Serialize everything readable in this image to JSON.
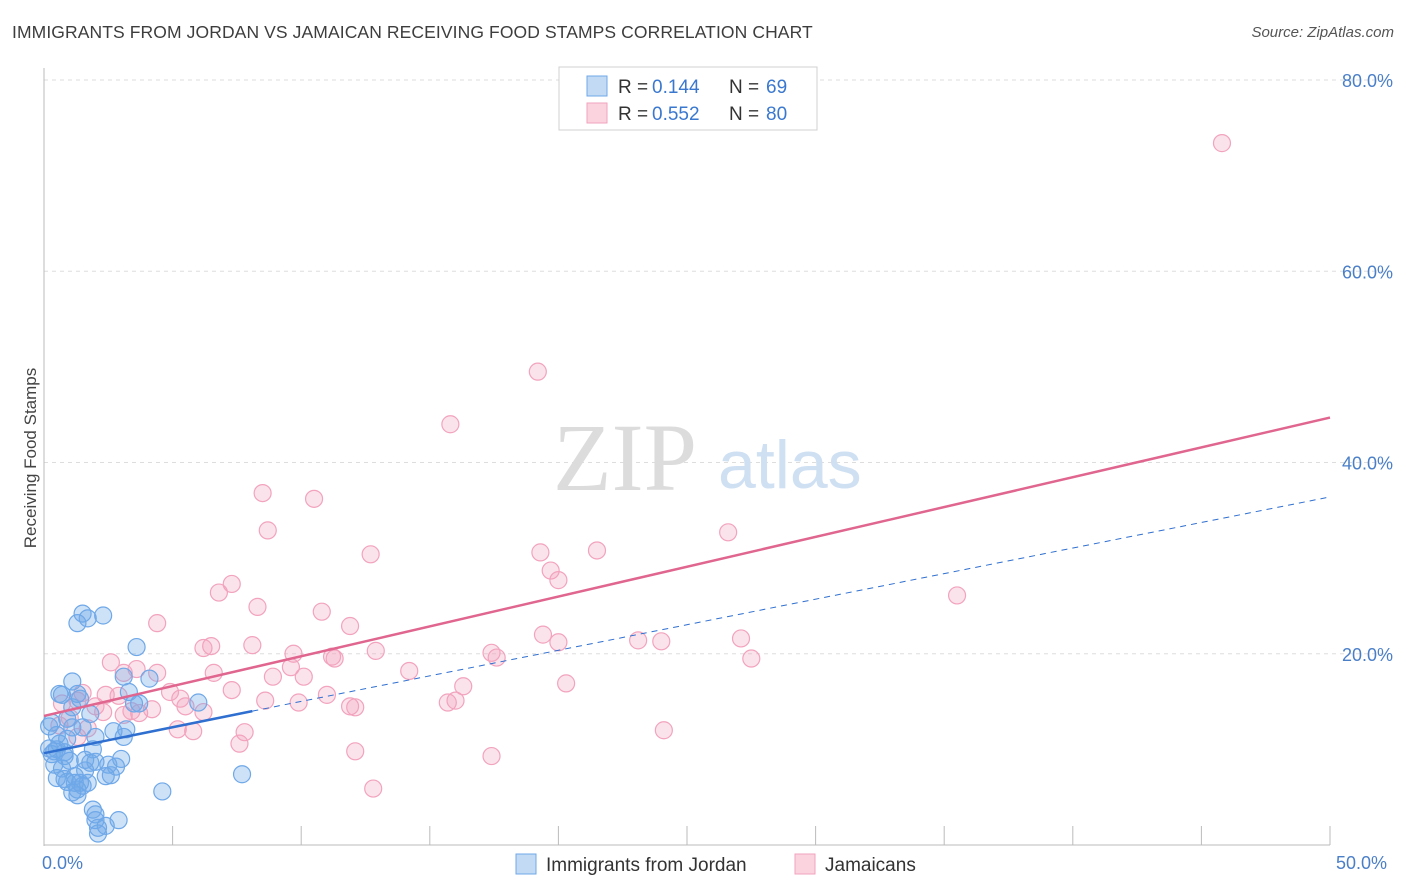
{
  "title": "IMMIGRANTS FROM JORDAN VS JAMAICAN RECEIVING FOOD STAMPS CORRELATION CHART",
  "source": "Source: ZipAtlas.com",
  "watermark": {
    "zip": "ZIP",
    "atlas": "atlas"
  },
  "colors": {
    "blue": "#6fa8e8",
    "blue_line": "#2f6fd0",
    "pink": "#f2a3bd",
    "pink_line": "#e0658f",
    "grid": "#dddddd",
    "axis_text": "#4a7fc8"
  },
  "legend": {
    "rows": [
      {
        "r_label": "R =",
        "r_value": "0.144",
        "n_label": "N =",
        "n_value": "69"
      },
      {
        "r_label": "R =",
        "r_value": "0.552",
        "n_label": "N =",
        "n_value": "80"
      }
    ]
  },
  "bottom_legend": {
    "items": [
      {
        "label": "Immigrants from Jordan"
      },
      {
        "label": "Jamaicans"
      }
    ]
  },
  "chart_data": {
    "type": "scatter",
    "title": "IMMIGRANTS FROM JORDAN VS JAMAICAN RECEIVING FOOD STAMPS CORRELATION CHART",
    "xlabel": "",
    "ylabel": "Receiving Food Stamps",
    "xlim": [
      0,
      50
    ],
    "ylim": [
      0,
      80
    ],
    "x_ticks": [
      "0.0%",
      "50.0%"
    ],
    "y_ticks": [
      {
        "value": 20,
        "label": "20.0%"
      },
      {
        "value": 40,
        "label": "40.0%"
      },
      {
        "value": 60,
        "label": "60.0%"
      },
      {
        "value": 80,
        "label": "80.0%"
      }
    ],
    "grid": true,
    "legend_position": "top-center",
    "series": [
      {
        "name": "Immigrants from Jordan",
        "color": "blue",
        "R": 0.144,
        "N": 69,
        "trend_solid": {
          "x": [
            0,
            8.1
          ],
          "y": [
            9.6,
            14.0
          ]
        },
        "trend_dashed": {
          "x": [
            8.1,
            50
          ],
          "y": [
            14.0,
            36.4
          ]
        },
        "points": [
          [
            1.5,
            24.2
          ],
          [
            1.7,
            23.7
          ],
          [
            2.3,
            24.0
          ],
          [
            1.3,
            23.2
          ],
          [
            3.6,
            20.7
          ],
          [
            4.1,
            17.4
          ],
          [
            3.1,
            17.6
          ],
          [
            1.1,
            17.1
          ],
          [
            0.6,
            15.8
          ],
          [
            0.7,
            15.7
          ],
          [
            1.3,
            15.8
          ],
          [
            1.4,
            15.3
          ],
          [
            3.5,
            14.8
          ],
          [
            3.7,
            14.8
          ],
          [
            6.0,
            14.9
          ],
          [
            1.1,
            14.4
          ],
          [
            0.2,
            12.4
          ],
          [
            1.1,
            12.3
          ],
          [
            1.5,
            12.3
          ],
          [
            3.2,
            12.1
          ],
          [
            3.1,
            11.3
          ],
          [
            2.0,
            11.3
          ],
          [
            0.5,
            11.5
          ],
          [
            0.9,
            11.1
          ],
          [
            0.2,
            10.1
          ],
          [
            0.5,
            10.0
          ],
          [
            0.8,
            9.7
          ],
          [
            1.9,
            10.0
          ],
          [
            0.3,
            9.5
          ],
          [
            0.8,
            9.3
          ],
          [
            1.6,
            8.9
          ],
          [
            2.0,
            8.7
          ],
          [
            1.8,
            8.6
          ],
          [
            2.5,
            8.4
          ],
          [
            3.0,
            9.0
          ],
          [
            0.4,
            8.4
          ],
          [
            0.7,
            8.0
          ],
          [
            2.8,
            8.2
          ],
          [
            2.6,
            7.3
          ],
          [
            7.7,
            7.4
          ],
          [
            2.4,
            7.2
          ],
          [
            0.5,
            7.0
          ],
          [
            0.8,
            6.9
          ],
          [
            1.2,
            7.2
          ],
          [
            1.2,
            6.5
          ],
          [
            1.4,
            6.5
          ],
          [
            1.5,
            6.2
          ],
          [
            1.7,
            6.5
          ],
          [
            1.3,
            5.8
          ],
          [
            1.1,
            5.5
          ],
          [
            1.3,
            5.2
          ],
          [
            4.6,
            5.6
          ],
          [
            1.9,
            3.7
          ],
          [
            2.0,
            3.2
          ],
          [
            2.0,
            2.6
          ],
          [
            2.9,
            2.6
          ],
          [
            2.4,
            2.0
          ],
          [
            2.1,
            1.8
          ],
          [
            2.1,
            1.2
          ],
          [
            0.3,
            12.8
          ],
          [
            0.4,
            9.8
          ],
          [
            0.6,
            10.6
          ],
          [
            1.0,
            8.8
          ],
          [
            0.9,
            6.6
          ],
          [
            1.6,
            7.8
          ],
          [
            3.3,
            16.0
          ],
          [
            0.9,
            13.2
          ],
          [
            1.8,
            13.7
          ],
          [
            2.7,
            11.9
          ]
        ]
      },
      {
        "name": "Jamaicans",
        "color": "pink",
        "R": 0.552,
        "N": 80,
        "trend_solid": {
          "x": [
            0,
            50
          ],
          "y": [
            13.5,
            44.7
          ]
        },
        "points": [
          [
            45.8,
            73.4
          ],
          [
            19.2,
            49.5
          ],
          [
            15.8,
            44.0
          ],
          [
            8.5,
            36.8
          ],
          [
            10.5,
            36.2
          ],
          [
            8.7,
            32.9
          ],
          [
            12.7,
            30.4
          ],
          [
            19.3,
            30.6
          ],
          [
            21.5,
            30.8
          ],
          [
            26.6,
            32.7
          ],
          [
            19.7,
            28.7
          ],
          [
            20.0,
            27.7
          ],
          [
            7.3,
            27.3
          ],
          [
            6.8,
            26.4
          ],
          [
            35.5,
            26.1
          ],
          [
            8.3,
            24.9
          ],
          [
            10.8,
            24.4
          ],
          [
            4.4,
            23.2
          ],
          [
            11.9,
            22.9
          ],
          [
            19.4,
            22.0
          ],
          [
            20.0,
            21.2
          ],
          [
            23.1,
            21.4
          ],
          [
            24.0,
            21.3
          ],
          [
            27.1,
            21.6
          ],
          [
            6.5,
            20.8
          ],
          [
            6.2,
            20.6
          ],
          [
            8.1,
            20.9
          ],
          [
            9.7,
            20.0
          ],
          [
            11.2,
            19.7
          ],
          [
            11.3,
            19.5
          ],
          [
            12.9,
            20.3
          ],
          [
            17.6,
            19.6
          ],
          [
            17.4,
            20.1
          ],
          [
            27.5,
            19.5
          ],
          [
            3.6,
            18.4
          ],
          [
            2.6,
            19.1
          ],
          [
            3.1,
            18.0
          ],
          [
            4.4,
            18.0
          ],
          [
            6.6,
            18.0
          ],
          [
            9.6,
            18.6
          ],
          [
            14.2,
            18.2
          ],
          [
            8.9,
            17.6
          ],
          [
            10.1,
            17.6
          ],
          [
            1.5,
            15.9
          ],
          [
            2.4,
            15.7
          ],
          [
            4.9,
            16.0
          ],
          [
            5.3,
            15.3
          ],
          [
            7.3,
            16.2
          ],
          [
            11.0,
            15.7
          ],
          [
            16.0,
            15.1
          ],
          [
            15.7,
            14.9
          ],
          [
            20.3,
            16.9
          ],
          [
            1.3,
            15.1
          ],
          [
            2.0,
            14.5
          ],
          [
            3.4,
            14.0
          ],
          [
            3.7,
            13.8
          ],
          [
            4.2,
            14.2
          ],
          [
            5.5,
            14.5
          ],
          [
            6.2,
            13.9
          ],
          [
            9.9,
            14.9
          ],
          [
            11.9,
            14.5
          ],
          [
            12.1,
            14.4
          ],
          [
            0.6,
            12.5
          ],
          [
            1.7,
            12.2
          ],
          [
            1.3,
            11.3
          ],
          [
            5.2,
            12.1
          ],
          [
            5.8,
            11.9
          ],
          [
            7.8,
            11.8
          ],
          [
            7.6,
            10.6
          ],
          [
            12.1,
            9.8
          ],
          [
            17.4,
            9.3
          ],
          [
            24.1,
            12.0
          ],
          [
            12.8,
            5.9
          ],
          [
            3.1,
            13.6
          ],
          [
            2.9,
            15.6
          ],
          [
            1.0,
            13.3
          ],
          [
            0.7,
            14.8
          ],
          [
            2.3,
            13.9
          ],
          [
            8.6,
            15.1
          ],
          [
            16.3,
            16.6
          ]
        ]
      }
    ]
  }
}
